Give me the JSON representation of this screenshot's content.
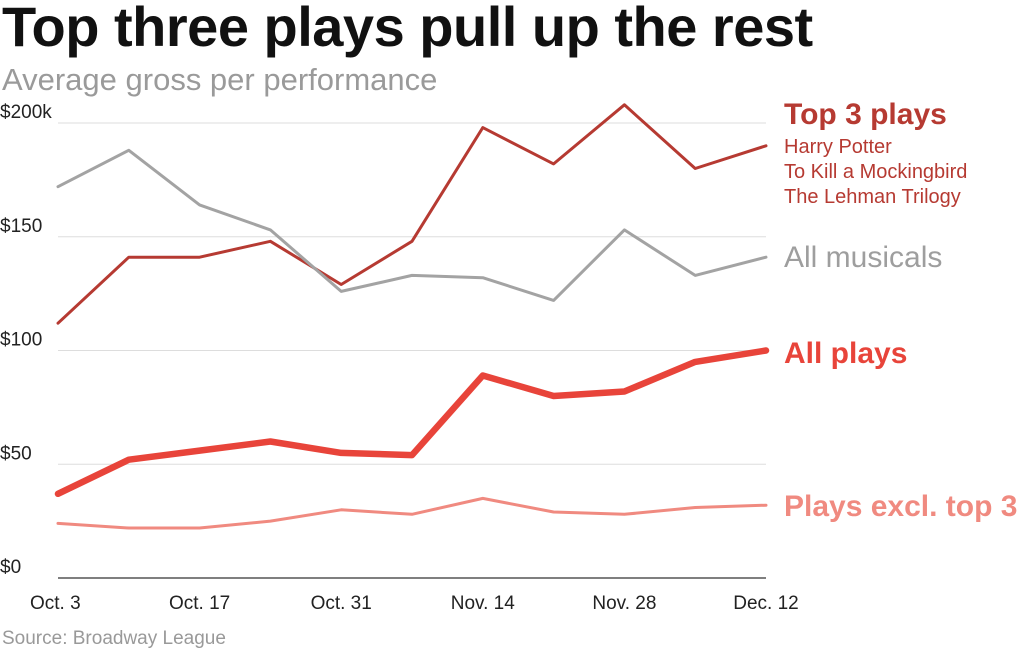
{
  "chart_data": {
    "type": "line",
    "title": "Top three plays pull up the rest",
    "subtitle": "Average gross per performance",
    "source": "Source: Broadway League",
    "ylim": [
      0,
      200
    ],
    "y_ticks": [
      "$0",
      "$50",
      "$100",
      "$150",
      "$200k"
    ],
    "y_tick_values": [
      0,
      50,
      100,
      150,
      200
    ],
    "x_tick_labels": [
      "Oct. 3",
      "Oct. 17",
      "Oct. 31",
      "Nov. 14",
      "Nov. 28",
      "Dec. 12"
    ],
    "x_tick_indices": [
      0,
      2,
      4,
      6,
      8,
      10
    ],
    "grid": true,
    "series": [
      {
        "name": "Top 3 plays",
        "members": [
          "Harry Potter",
          "To Kill a Mockingbird",
          "The Lehman Trilogy"
        ],
        "color": "#b63a32",
        "values": [
          112,
          141,
          141,
          148,
          129,
          148,
          198,
          182,
          208,
          180,
          190
        ]
      },
      {
        "name": "All musicals",
        "color": "#a3a3a3",
        "values": [
          172,
          188,
          164,
          153,
          126,
          133,
          132,
          122,
          153,
          133,
          141
        ]
      },
      {
        "name": "All plays",
        "color": "#e8443a",
        "values": [
          37,
          52,
          56,
          60,
          55,
          54,
          89,
          80,
          82,
          95,
          100
        ]
      },
      {
        "name": "Plays excl. top 3",
        "color": "#f08a80",
        "values": [
          24,
          22,
          22,
          25,
          30,
          28,
          35,
          29,
          28,
          31,
          32
        ]
      }
    ]
  }
}
